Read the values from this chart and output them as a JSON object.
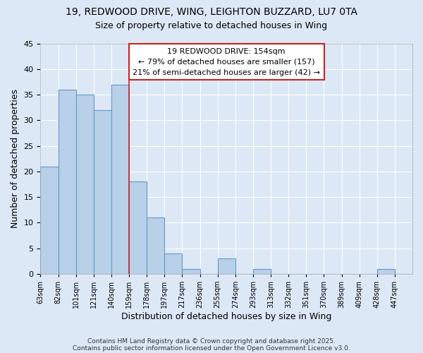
{
  "title_line1": "19, REDWOOD DRIVE, WING, LEIGHTON BUZZARD, LU7 0TA",
  "title_line2": "Size of property relative to detached houses in Wing",
  "xlabel": "Distribution of detached houses by size in Wing",
  "ylabel": "Number of detached properties",
  "categories": [
    "63sqm",
    "82sqm",
    "101sqm",
    "121sqm",
    "140sqm",
    "159sqm",
    "178sqm",
    "197sqm",
    "217sqm",
    "236sqm",
    "255sqm",
    "274sqm",
    "293sqm",
    "313sqm",
    "332sqm",
    "351sqm",
    "370sqm",
    "389sqm",
    "409sqm",
    "428sqm",
    "447sqm"
  ],
  "values": [
    21,
    36,
    35,
    32,
    37,
    18,
    11,
    4,
    1,
    0,
    3,
    0,
    1,
    0,
    0,
    0,
    0,
    0,
    0,
    1,
    0
  ],
  "bar_color": "#b8d0e8",
  "bar_edge_color": "#6699cc",
  "background_color": "#dce8f5",
  "grid_color": "#ffffff",
  "property_line_color": "#cc2222",
  "property_line_bin": 4,
  "annotation_text": "19 REDWOOD DRIVE: 154sqm\n← 79% of detached houses are smaller (157)\n21% of semi-detached houses are larger (42) →",
  "annotation_box_color": "#ffffff",
  "annotation_box_edge_color": "#cc2222",
  "ylim": [
    0,
    45
  ],
  "yticks": [
    0,
    5,
    10,
    15,
    20,
    25,
    30,
    35,
    40,
    45
  ],
  "footnote1": "Contains HM Land Registry data © Crown copyright and database right 2025.",
  "footnote2": "Contains public sector information licensed under the Open Government Licence v3.0."
}
